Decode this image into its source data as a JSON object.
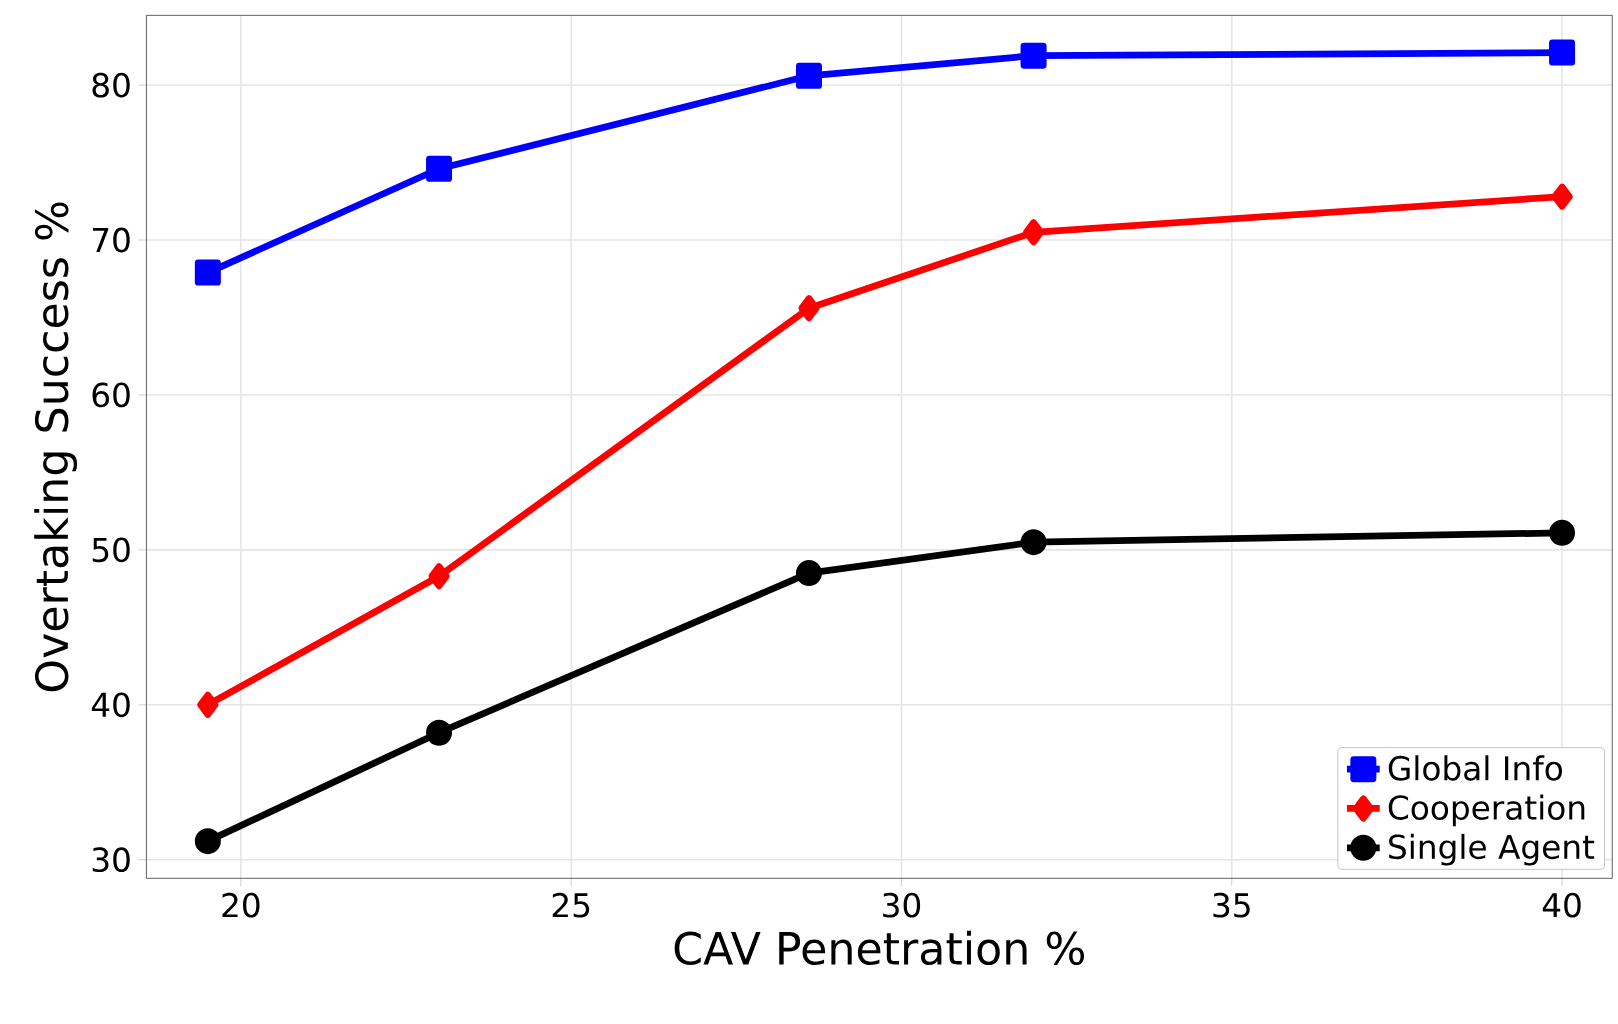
{
  "chart_data": {
    "type": "line",
    "xlabel": "CAV Penetration %",
    "ylabel": "Overtaking Success %",
    "xlim": [
      18.57,
      40.76
    ],
    "ylim": [
      28.8,
      84.5
    ],
    "xticks": [
      20,
      25,
      30,
      35,
      40
    ],
    "yticks": [
      30,
      40,
      50,
      60,
      70,
      80
    ],
    "grid": true,
    "legend": "bottom right",
    "line_style": "solid",
    "x": [
      19.5,
      23.0,
      28.6,
      32.0,
      40.0
    ],
    "series": [
      {
        "name": "Global Info",
        "color": "#0000ff",
        "marker": "square",
        "values": [
          67.9,
          74.6,
          80.6,
          81.9,
          82.1
        ]
      },
      {
        "name": "Cooperation",
        "color": "#ff0000",
        "marker": "diamond",
        "values": [
          40.0,
          48.3,
          65.6,
          70.5,
          72.8
        ]
      },
      {
        "name": "Single Agent",
        "color": "#000000",
        "marker": "circle",
        "values": [
          31.2,
          38.2,
          48.5,
          50.5,
          51.1
        ]
      }
    ]
  }
}
